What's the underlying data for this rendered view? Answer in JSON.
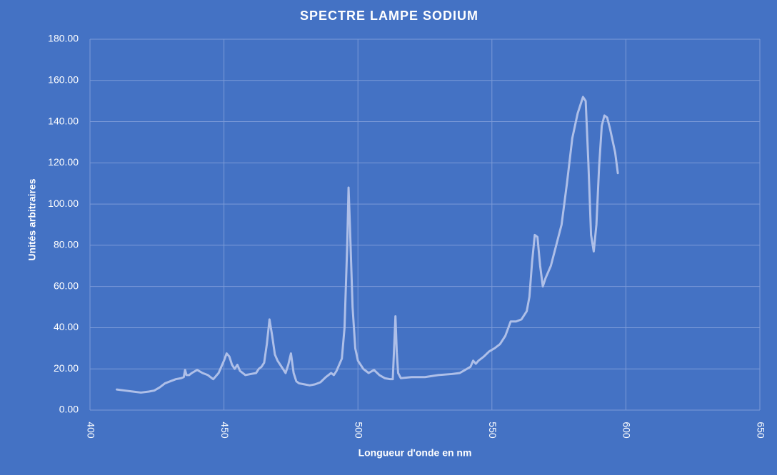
{
  "chart_data": {
    "type": "line",
    "title": "SPECTRE LAMPE SODIUM",
    "x_label": "Longueur d'onde en nm",
    "y_label": "Unités arbitraires",
    "color": "#aebfe8",
    "grid": true,
    "x": [
      410,
      413,
      416,
      419,
      422,
      424,
      426,
      428,
      430,
      432,
      434,
      435,
      435.5,
      436,
      437,
      438,
      440,
      442,
      444,
      446,
      448,
      450,
      451,
      452,
      453,
      454,
      455,
      456,
      458,
      460,
      462,
      463,
      464,
      465,
      466,
      467,
      468,
      469,
      470,
      471,
      472,
      473,
      474,
      475,
      476,
      477,
      478,
      480,
      482,
      484,
      486,
      488,
      490,
      491,
      492,
      494,
      495,
      496,
      496.5,
      497,
      498,
      499,
      500,
      502,
      504,
      506,
      508,
      510,
      512,
      513,
      513.5,
      514,
      514.5,
      515,
      516,
      520,
      525,
      530,
      535,
      538,
      540,
      542,
      543,
      544,
      545,
      547,
      549,
      551,
      553,
      555,
      557,
      559,
      561,
      563,
      564,
      565,
      566,
      567,
      568,
      569,
      570,
      572,
      574,
      576,
      578,
      580,
      582,
      584,
      585,
      586,
      587,
      588,
      589,
      590,
      591,
      592,
      593,
      594,
      596,
      597
    ],
    "values": [
      10,
      9.5,
      9,
      8.5,
      9,
      9.5,
      11,
      13,
      14,
      15,
      15.5,
      16,
      19.5,
      17,
      17,
      18,
      19.5,
      18,
      17,
      15,
      18,
      24,
      27.5,
      26,
      22,
      20,
      22,
      19,
      17,
      17.5,
      18,
      20,
      21,
      23,
      32,
      44,
      36,
      27,
      24,
      22,
      20,
      18,
      22,
      27.5,
      18,
      14,
      13,
      12.5,
      12,
      12.5,
      13.5,
      16,
      18,
      17,
      19,
      25,
      40,
      80,
      108,
      90,
      50,
      30,
      24,
      20,
      18,
      19.5,
      17,
      15.5,
      15,
      15,
      30,
      45.5,
      28,
      18,
      15.5,
      16,
      16,
      17,
      17.5,
      18,
      19.5,
      21,
      24,
      22.5,
      24,
      26,
      28.5,
      30,
      32,
      36,
      43,
      43,
      44,
      48,
      55,
      72,
      85,
      84,
      70,
      60,
      64,
      70,
      80,
      90,
      110,
      132,
      144,
      152,
      150,
      120,
      85,
      77,
      90,
      118,
      138,
      143,
      142,
      137,
      125,
      115
    ],
    "xlim": [
      400,
      650
    ],
    "xticks": [
      400,
      450,
      500,
      550,
      600,
      650
    ],
    "ylim": [
      0,
      180
    ],
    "yticks": [
      {
        "value": 0,
        "label": "0.00"
      },
      {
        "value": 20,
        "label": "20.00"
      },
      {
        "value": 40,
        "label": "40.00"
      },
      {
        "value": 60,
        "label": "60.00"
      },
      {
        "value": 80,
        "label": "80.00"
      },
      {
        "value": 100,
        "label": "100.00"
      },
      {
        "value": 120,
        "label": "120.00"
      },
      {
        "value": 140,
        "label": "140.00"
      },
      {
        "value": 160,
        "label": "160.00"
      },
      {
        "value": 180,
        "label": "180.00"
      }
    ]
  }
}
